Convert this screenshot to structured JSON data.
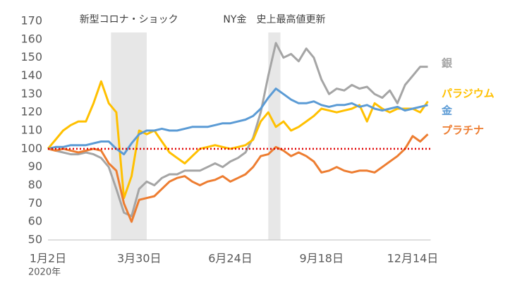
{
  "chart_data": {
    "type": "line",
    "categories": [
      "1月2日",
      null,
      null,
      null,
      null,
      null,
      null,
      null,
      null,
      null,
      null,
      null,
      "3月30日",
      null,
      null,
      null,
      null,
      null,
      null,
      null,
      null,
      null,
      null,
      null,
      "6月24日",
      null,
      null,
      null,
      null,
      null,
      null,
      null,
      null,
      null,
      null,
      null,
      "9月18日",
      null,
      null,
      null,
      null,
      null,
      null,
      null,
      null,
      null,
      null,
      null,
      "12月14日",
      null,
      null
    ],
    "x_sublabel": "2020年",
    "ylim": [
      50,
      170
    ],
    "yticks": [
      50,
      60,
      70,
      80,
      90,
      100,
      110,
      120,
      130,
      140,
      150,
      160,
      170
    ],
    "reference_line": {
      "value": 100,
      "color": "#e00000"
    },
    "annotations": [
      {
        "text": "新型コロナ・ショック",
        "span": [
          8.3,
          13
        ]
      },
      {
        "text": "NY金　史上最高値更新",
        "span": [
          29,
          30.6
        ]
      }
    ],
    "series": [
      {
        "name": "銀",
        "color": "#a5a5a5",
        "values": [
          100,
          99,
          98,
          97,
          97,
          98,
          97,
          95,
          90,
          78,
          65,
          63,
          78,
          82,
          80,
          84,
          86,
          86,
          88,
          88,
          88,
          90,
          92,
          90,
          93,
          95,
          98,
          106,
          120,
          140,
          158,
          150,
          152,
          148,
          155,
          150,
          138,
          130,
          133,
          132,
          135,
          133,
          134,
          130,
          128,
          132,
          125,
          135,
          140,
          145,
          145
        ]
      },
      {
        "name": "パラジウム",
        "color": "#ffc000",
        "values": [
          100,
          105,
          110,
          113,
          115,
          115,
          125,
          137,
          125,
          120,
          73,
          85,
          110,
          108,
          110,
          104,
          98,
          95,
          92,
          96,
          100,
          101,
          102,
          101,
          100,
          101,
          102,
          105,
          115,
          120,
          112,
          115,
          110,
          112,
          115,
          118,
          122,
          121,
          120,
          121,
          122,
          124,
          115,
          125,
          122,
          120,
          122,
          122,
          122,
          120,
          126
        ]
      },
      {
        "name": "金",
        "color": "#5b9bd5",
        "values": [
          100,
          101,
          101,
          102,
          102,
          102,
          103,
          104,
          104,
          100,
          97,
          103,
          108,
          110,
          110,
          111,
          110,
          110,
          111,
          112,
          112,
          112,
          113,
          114,
          114,
          115,
          116,
          118,
          122,
          128,
          133,
          130,
          127,
          125,
          125,
          126,
          124,
          123,
          124,
          124,
          125,
          123,
          124,
          122,
          121,
          122,
          123,
          121,
          122,
          123,
          124
        ]
      },
      {
        "name": "プラチナ",
        "color": "#ed7d31",
        "values": [
          100,
          99,
          100,
          99,
          98,
          99,
          100,
          99,
          92,
          88,
          70,
          60,
          72,
          73,
          74,
          78,
          82,
          84,
          85,
          82,
          80,
          82,
          83,
          85,
          82,
          84,
          86,
          90,
          96,
          97,
          101,
          99,
          96,
          98,
          96,
          93,
          87,
          88,
          90,
          88,
          87,
          88,
          88,
          87,
          90,
          93,
          96,
          100,
          107,
          104,
          108
        ]
      }
    ]
  }
}
